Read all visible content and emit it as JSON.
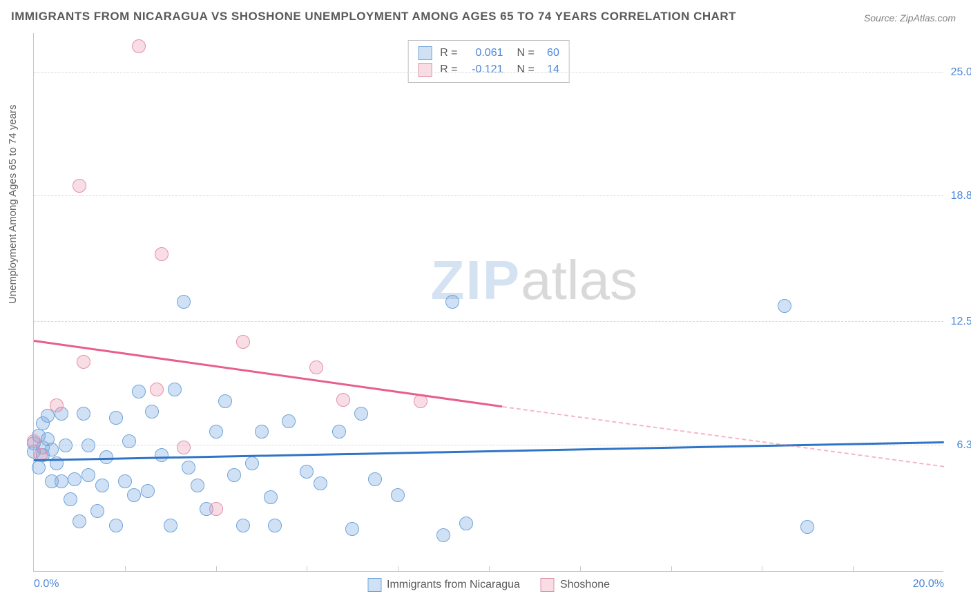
{
  "title": "IMMIGRANTS FROM NICARAGUA VS SHOSHONE UNEMPLOYMENT AMONG AGES 65 TO 74 YEARS CORRELATION CHART",
  "source": "Source: ZipAtlas.com",
  "y_axis_label": "Unemployment Among Ages 65 to 74 years",
  "watermark_a": "ZIP",
  "watermark_b": "atlas",
  "xlim": [
    0,
    20
  ],
  "ylim": [
    0,
    27
  ],
  "x_ticks": [
    {
      "v": 0.0,
      "label": "0.0%"
    },
    {
      "v": 20.0,
      "label": "20.0%"
    }
  ],
  "x_tick_marks": [
    2,
    4,
    6,
    8,
    10,
    12,
    14,
    16,
    18
  ],
  "y_ticks": [
    {
      "v": 6.3,
      "label": "6.3%"
    },
    {
      "v": 12.5,
      "label": "12.5%"
    },
    {
      "v": 18.8,
      "label": "18.8%"
    },
    {
      "v": 25.0,
      "label": "25.0%"
    }
  ],
  "series": [
    {
      "id": "nicaragua",
      "name": "Immigrants from Nicaragua",
      "color_fill": "rgba(120,170,225,0.35)",
      "color_stroke": "#6fa4d8",
      "marker_radius": 10,
      "R": "0.061",
      "N": "60",
      "trend": {
        "x0": 0,
        "y0": 5.5,
        "x_solid_end": 20,
        "y_solid_end": 6.4,
        "x1": 20,
        "y1": 6.4,
        "color": "#2f74c5"
      },
      "points": [
        [
          0.0,
          6.0
        ],
        [
          0.0,
          6.4
        ],
        [
          0.1,
          6.8
        ],
        [
          0.1,
          5.2
        ],
        [
          0.2,
          7.4
        ],
        [
          0.2,
          5.8
        ],
        [
          0.2,
          6.2
        ],
        [
          0.3,
          7.8
        ],
        [
          0.3,
          6.6
        ],
        [
          0.4,
          6.1
        ],
        [
          0.4,
          4.5
        ],
        [
          0.5,
          5.4
        ],
        [
          0.6,
          7.9
        ],
        [
          0.6,
          4.5
        ],
        [
          0.7,
          6.3
        ],
        [
          0.8,
          3.6
        ],
        [
          0.9,
          4.6
        ],
        [
          1.0,
          2.5
        ],
        [
          1.1,
          7.9
        ],
        [
          1.2,
          4.8
        ],
        [
          1.2,
          6.3
        ],
        [
          1.4,
          3.0
        ],
        [
          1.5,
          4.3
        ],
        [
          1.6,
          5.7
        ],
        [
          1.8,
          7.7
        ],
        [
          1.8,
          2.3
        ],
        [
          2.0,
          4.5
        ],
        [
          2.1,
          6.5
        ],
        [
          2.2,
          3.8
        ],
        [
          2.3,
          9.0
        ],
        [
          2.5,
          4.0
        ],
        [
          2.6,
          8.0
        ],
        [
          2.8,
          5.8
        ],
        [
          3.0,
          2.3
        ],
        [
          3.1,
          9.1
        ],
        [
          3.3,
          13.5
        ],
        [
          3.4,
          5.2
        ],
        [
          3.6,
          4.3
        ],
        [
          3.8,
          3.1
        ],
        [
          4.0,
          7.0
        ],
        [
          4.2,
          8.5
        ],
        [
          4.4,
          4.8
        ],
        [
          4.6,
          2.3
        ],
        [
          4.8,
          5.4
        ],
        [
          5.0,
          7.0
        ],
        [
          5.2,
          3.7
        ],
        [
          5.3,
          2.3
        ],
        [
          5.6,
          7.5
        ],
        [
          6.0,
          5.0
        ],
        [
          6.3,
          4.4
        ],
        [
          6.7,
          7.0
        ],
        [
          7.0,
          2.1
        ],
        [
          7.2,
          7.9
        ],
        [
          7.5,
          4.6
        ],
        [
          8.0,
          3.8
        ],
        [
          9.0,
          1.8
        ],
        [
          9.2,
          13.5
        ],
        [
          9.5,
          2.4
        ],
        [
          16.5,
          13.3
        ],
        [
          17.0,
          2.2
        ]
      ]
    },
    {
      "id": "shoshone",
      "name": "Shoshone",
      "color_fill": "rgba(235,150,175,0.32)",
      "color_stroke": "#e290ab",
      "marker_radius": 10,
      "R": "-0.121",
      "N": "14",
      "trend": {
        "x0": 0,
        "y0": 11.5,
        "x_solid_end": 10.3,
        "y_solid_end": 8.2,
        "x1": 20,
        "y1": 5.2,
        "color": "#e75f8a"
      },
      "points": [
        [
          0.0,
          6.5
        ],
        [
          0.15,
          5.8
        ],
        [
          0.5,
          8.3
        ],
        [
          1.0,
          19.3
        ],
        [
          1.1,
          10.5
        ],
        [
          2.3,
          26.3
        ],
        [
          2.7,
          9.1
        ],
        [
          2.8,
          15.9
        ],
        [
          3.3,
          6.2
        ],
        [
          4.0,
          3.1
        ],
        [
          4.6,
          11.5
        ],
        [
          6.2,
          10.2
        ],
        [
          6.8,
          8.6
        ],
        [
          8.5,
          8.5
        ]
      ]
    }
  ]
}
